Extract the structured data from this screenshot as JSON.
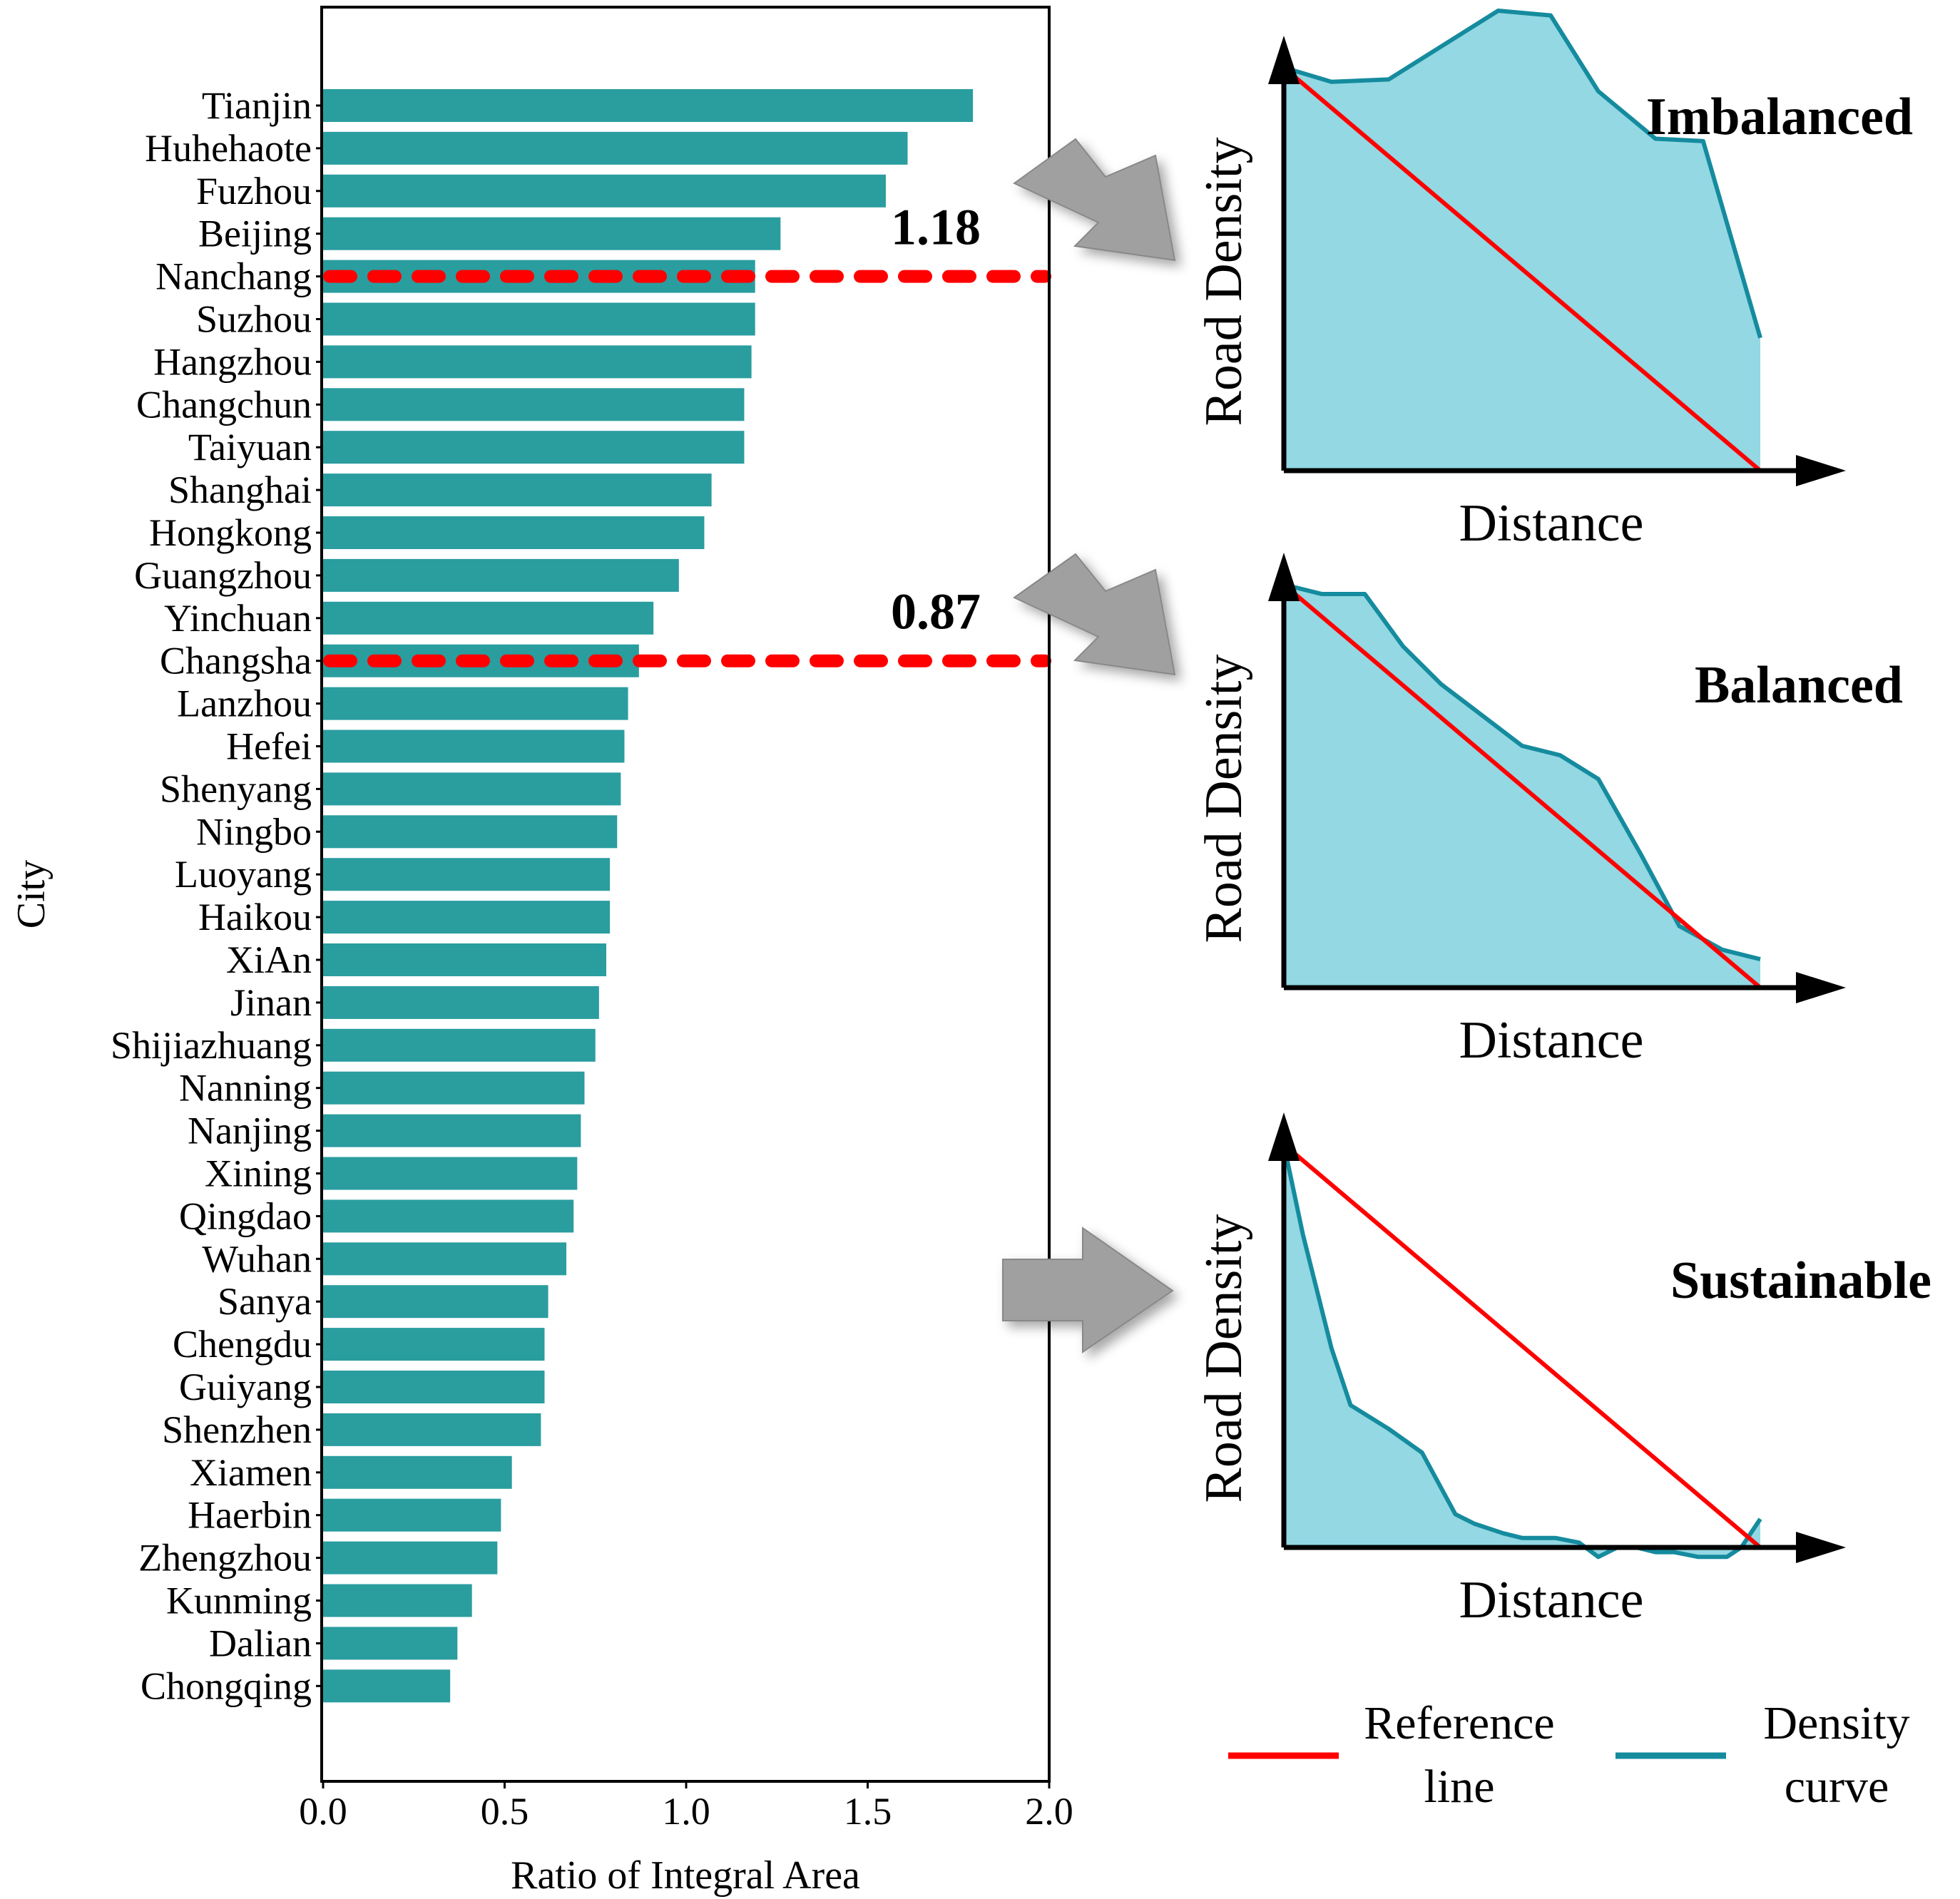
{
  "colors": {
    "bar": "#2a9d9f",
    "ref_line": "#ff0000",
    "threshold_line": "#ff0000",
    "curve_line": "#158b9e",
    "curve_fill": "#93d8e3",
    "arrow_fill": "#a0a0a0",
    "axis": "#000000"
  },
  "chart_data": [
    {
      "type": "bar",
      "orientation": "horizontal",
      "xlabel": "Ratio of Integral Area",
      "ylabel": "City",
      "xlim": [
        0.0,
        2.0
      ],
      "xticks": [
        "0.0",
        "0.5",
        "1.0",
        "1.5",
        "2.0"
      ],
      "categories": [
        "Tianjin",
        "Huhehaote",
        "Fuzhou",
        "Beijing",
        "Nanchang",
        "Suzhou",
        "Hangzhou",
        "Changchun",
        "Taiyuan",
        "Shanghai",
        "Hongkong",
        "Guangzhou",
        "Yinchuan",
        "Changsha",
        "Lanzhou",
        "Hefei",
        "Shenyang",
        "Ningbo",
        "Luoyang",
        "Haikou",
        "XiAn",
        "Jinan",
        "Shijiazhuang",
        "Nanning",
        "Nanjing",
        "Xining",
        "Qingdao",
        "Wuhan",
        "Sanya",
        "Chengdu",
        "Guiyang",
        "Shenzhen",
        "Xiamen",
        "Haerbin",
        "Zhengzhou",
        "Kunming",
        "Dalian",
        "Chongqing"
      ],
      "values": [
        1.79,
        1.61,
        1.55,
        1.26,
        1.19,
        1.19,
        1.18,
        1.16,
        1.16,
        1.07,
        1.05,
        0.98,
        0.91,
        0.87,
        0.84,
        0.83,
        0.82,
        0.81,
        0.79,
        0.79,
        0.78,
        0.76,
        0.75,
        0.72,
        0.71,
        0.7,
        0.69,
        0.67,
        0.62,
        0.61,
        0.61,
        0.6,
        0.52,
        0.49,
        0.48,
        0.41,
        0.37,
        0.35
      ],
      "thresholds": [
        {
          "value": 1.18,
          "label": "1.18",
          "at_category": "Nanchang"
        },
        {
          "value": 0.87,
          "label": "0.87",
          "at_category": "Changsha"
        }
      ]
    },
    {
      "type": "area",
      "title": "Imbalanced",
      "xlabel": "Distance",
      "ylabel": "Road Density",
      "xlim": [
        0,
        1
      ],
      "ylim": [
        0,
        1
      ],
      "density_curve": {
        "x": [
          0.0,
          0.1,
          0.22,
          0.45,
          0.56,
          0.66,
          0.78,
          0.88,
          1.0
        ],
        "y": [
          0.85,
          0.82,
          0.825,
          0.97,
          0.96,
          0.8,
          0.7,
          0.695,
          0.28
        ]
      },
      "reference_line": {
        "x": [
          0,
          1
        ],
        "y": [
          0.85,
          0.0
        ]
      }
    },
    {
      "type": "area",
      "title": "Balanced",
      "xlabel": "Distance",
      "ylabel": "Road Density",
      "xlim": [
        0,
        1
      ],
      "ylim": [
        0,
        1
      ],
      "density_curve": {
        "x": [
          0.0,
          0.08,
          0.17,
          0.25,
          0.33,
          0.5,
          0.58,
          0.66,
          0.75,
          0.83,
          0.92,
          1.0
        ],
        "y": [
          0.85,
          0.83,
          0.83,
          0.72,
          0.64,
          0.51,
          0.49,
          0.44,
          0.28,
          0.13,
          0.08,
          0.06
        ]
      },
      "reference_line": {
        "x": [
          0,
          1
        ],
        "y": [
          0.85,
          0.0
        ]
      }
    },
    {
      "type": "area",
      "title": "Sustainable",
      "xlabel": "Distance",
      "ylabel": "Road Density",
      "xlim": [
        0,
        1
      ],
      "ylim": [
        0,
        1
      ],
      "density_curve": {
        "x": [
          0.0,
          0.04,
          0.1,
          0.14,
          0.22,
          0.29,
          0.36,
          0.4,
          0.46,
          0.5,
          0.57,
          0.62,
          0.66,
          0.7,
          0.74,
          0.78,
          0.82,
          0.87,
          0.93,
          0.96,
          1.0
        ],
        "y": [
          0.85,
          0.66,
          0.42,
          0.3,
          0.25,
          0.2,
          0.07,
          0.05,
          0.03,
          0.02,
          0.02,
          0.01,
          -0.02,
          0.0,
          0.0,
          -0.01,
          -0.01,
          -0.02,
          -0.02,
          0.0,
          0.06
        ]
      },
      "reference_line": {
        "x": [
          0,
          1
        ],
        "y": [
          0.85,
          0.0
        ]
      }
    }
  ],
  "legend": {
    "reference_line_label": [
      "Reference",
      "line"
    ],
    "density_curve_label": [
      "Density",
      "curve"
    ]
  }
}
